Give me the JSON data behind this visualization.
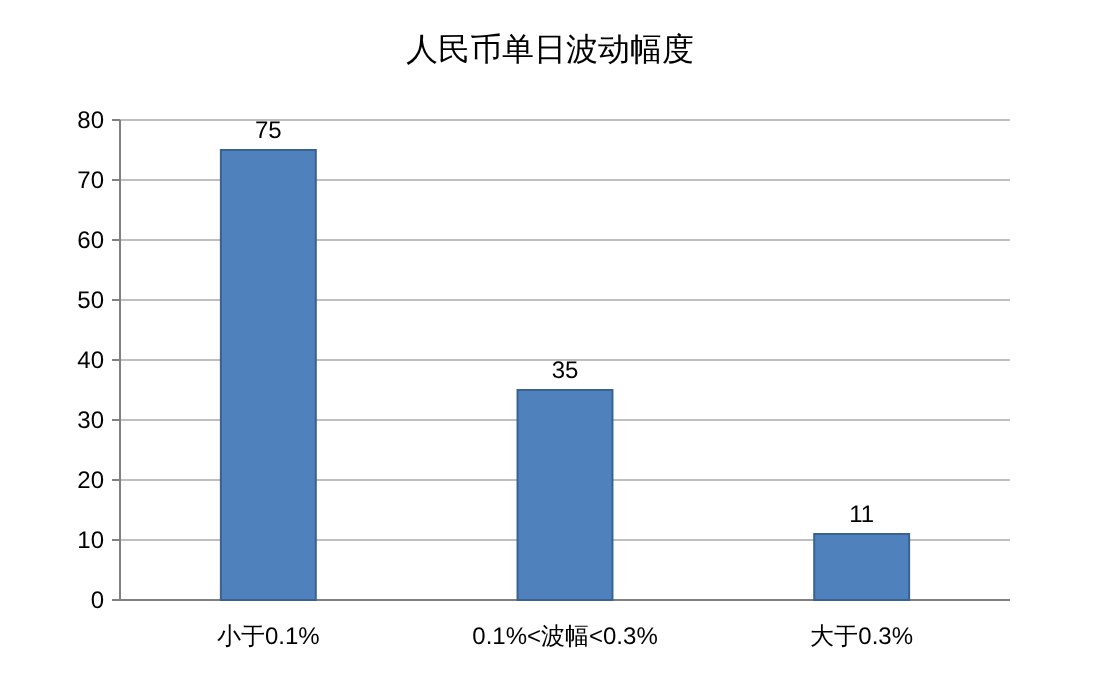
{
  "chart_data": {
    "type": "bar",
    "title": "人民币单日波动幅度",
    "categories": [
      "小于0.1%",
      "0.1%<波幅<0.3%",
      "大于0.3%"
    ],
    "values": [
      75,
      35,
      11
    ],
    "color": "#4f81bd",
    "ylim": [
      0,
      80
    ],
    "yticks": [
      0,
      10,
      20,
      30,
      40,
      50,
      60,
      70,
      80
    ],
    "grid": "y",
    "data_labels": true
  }
}
